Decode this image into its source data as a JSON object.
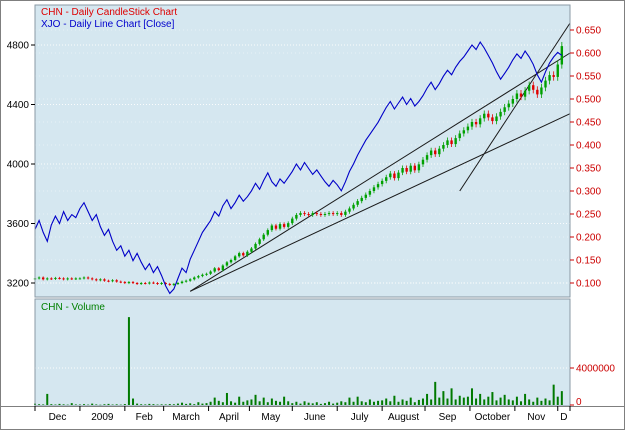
{
  "legends": {
    "chn": "CHN - Daily CandleStick Chart",
    "xjo": "XJO - Daily Line Chart [Close]",
    "volume": "CHN - Volume"
  },
  "axes": {
    "left_ticks": [
      "4800",
      "4400",
      "4000",
      "3600",
      "3200"
    ],
    "right_ticks": [
      "0.650",
      "0.600",
      "0.550",
      "0.500",
      "0.450",
      "0.400",
      "0.350",
      "0.300",
      "0.250",
      "0.200",
      "0.150",
      "0.100"
    ],
    "months": [
      "Dec",
      "2009",
      "Feb",
      "March",
      "April",
      "May",
      "June",
      "July",
      "August",
      "Sep",
      "October",
      "Nov",
      "D"
    ],
    "volume_ticks": [
      "4000000",
      "0"
    ]
  },
  "colors": {
    "panel_background": "#d5e7f0",
    "outer_background": "#ffffff",
    "grid": "#ffffff",
    "candle_up": "#00a000",
    "candle_down": "#e00000",
    "xjo_line": "#0000c8",
    "volume_bar": "#007a00",
    "trendline": "#1a1a1a",
    "left_axis_text": "#000000",
    "right_axis_text": "#cc0000",
    "month_text": "#000000",
    "legend_chn": "#dd0000",
    "legend_xjo": "#0000cc",
    "legend_volume": "#008000",
    "border": "#8a9aa5"
  },
  "chart_data": {
    "type": "mixed",
    "sample_step_days": 2,
    "total_days": 262,
    "month_labels": [
      "Dec",
      "2009",
      "Feb",
      "March",
      "April",
      "May",
      "June",
      "July",
      "August",
      "Sep",
      "October",
      "Nov",
      "D"
    ],
    "month_start_days": [
      0,
      22,
      44,
      63,
      85,
      105,
      126,
      148,
      170,
      191,
      213,
      235,
      256
    ],
    "left_axis": {
      "ticks": [
        4800,
        4400,
        4000,
        3600,
        3200
      ],
      "range": [
        3113,
        5049
      ]
    },
    "right_axis": {
      "ticks": [
        0.65,
        0.6,
        0.55,
        0.5,
        0.45,
        0.4,
        0.35,
        0.3,
        0.25,
        0.2,
        0.15,
        0.1
      ],
      "range": [
        0.072,
        0.698
      ]
    },
    "volume_axis": {
      "ticks": [
        4000000,
        0
      ],
      "range": [
        0,
        11000000
      ]
    },
    "series": [
      {
        "name": "XJO - Daily Line Chart [Close]",
        "type": "line",
        "axis": "left",
        "values": [
          3560,
          3620,
          3540,
          3480,
          3590,
          3650,
          3600,
          3680,
          3620,
          3660,
          3640,
          3700,
          3740,
          3680,
          3620,
          3660,
          3580,
          3520,
          3560,
          3480,
          3420,
          3450,
          3380,
          3420,
          3350,
          3400,
          3340,
          3290,
          3330,
          3270,
          3310,
          3250,
          3180,
          3130,
          3160,
          3230,
          3300,
          3270,
          3360,
          3420,
          3480,
          3540,
          3580,
          3620,
          3680,
          3650,
          3720,
          3760,
          3700,
          3740,
          3790,
          3750,
          3780,
          3820,
          3870,
          3830,
          3890,
          3940,
          3880,
          3850,
          3900,
          3870,
          3910,
          3950,
          4000,
          3960,
          4010,
          3970,
          3930,
          3960,
          3920,
          3880,
          3850,
          3890,
          3860,
          3820,
          3880,
          3950,
          4000,
          4060,
          4110,
          4160,
          4200,
          4240,
          4280,
          4330,
          4380,
          4420,
          4370,
          4410,
          4450,
          4400,
          4440,
          4390,
          4420,
          4460,
          4510,
          4550,
          4500,
          4540,
          4590,
          4630,
          4600,
          4650,
          4690,
          4720,
          4760,
          4800,
          4770,
          4820,
          4780,
          4730,
          4680,
          4620,
          4570,
          4610,
          4650,
          4700,
          4740,
          4710,
          4760,
          4720,
          4670,
          4600,
          4550,
          4620,
          4680,
          4720,
          4750,
          4730
        ]
      },
      {
        "name": "CHN - Daily CandleStick Chart",
        "type": "candlestick",
        "axis": "right",
        "close": [
          0.11,
          0.112,
          0.108,
          0.11,
          0.109,
          0.111,
          0.11,
          0.108,
          0.11,
          0.109,
          0.11,
          0.11,
          0.112,
          0.11,
          0.108,
          0.106,
          0.108,
          0.105,
          0.104,
          0.106,
          0.103,
          0.102,
          0.1,
          0.102,
          0.1,
          0.098,
          0.1,
          0.099,
          0.101,
          0.1,
          0.098,
          0.1,
          0.098,
          0.096,
          0.098,
          0.1,
          0.103,
          0.105,
          0.108,
          0.112,
          0.115,
          0.118,
          0.12,
          0.125,
          0.132,
          0.128,
          0.138,
          0.145,
          0.15,
          0.158,
          0.165,
          0.16,
          0.168,
          0.175,
          0.185,
          0.195,
          0.205,
          0.215,
          0.225,
          0.218,
          0.228,
          0.222,
          0.23,
          0.24,
          0.248,
          0.252,
          0.25,
          0.248,
          0.252,
          0.25,
          0.248,
          0.25,
          0.252,
          0.25,
          0.252,
          0.248,
          0.255,
          0.262,
          0.27,
          0.278,
          0.285,
          0.292,
          0.3,
          0.308,
          0.315,
          0.322,
          0.33,
          0.338,
          0.328,
          0.34,
          0.35,
          0.342,
          0.355,
          0.345,
          0.358,
          0.368,
          0.378,
          0.388,
          0.38,
          0.392,
          0.4,
          0.41,
          0.402,
          0.415,
          0.425,
          0.432,
          0.44,
          0.45,
          0.445,
          0.458,
          0.468,
          0.46,
          0.452,
          0.462,
          0.472,
          0.482,
          0.49,
          0.5,
          0.512,
          0.505,
          0.518,
          0.53,
          0.52,
          0.51,
          0.525,
          0.54,
          0.552,
          0.548,
          0.575,
          0.615
        ]
      },
      {
        "name": "CHN - Volume",
        "type": "bar",
        "panel": "volume",
        "values": [
          150000,
          80000,
          60000,
          1200000,
          90000,
          50000,
          120000,
          70000,
          40000,
          200000,
          60000,
          50000,
          90000,
          40000,
          150000,
          60000,
          30000,
          80000,
          120000,
          50000,
          70000,
          40000,
          100000,
          9500000,
          700000,
          150000,
          80000,
          60000,
          120000,
          90000,
          50000,
          70000,
          60000,
          100000,
          80000,
          150000,
          250000,
          120000,
          180000,
          90000,
          300000,
          150000,
          200000,
          350000,
          800000,
          450000,
          300000,
          1300000,
          400000,
          250000,
          900000,
          350000,
          500000,
          600000,
          1100000,
          400000,
          800000,
          300000,
          700000,
          450000,
          350000,
          900000,
          400000,
          200000,
          350000,
          150000,
          400000,
          250000,
          180000,
          300000,
          120000,
          200000,
          350000,
          150000,
          250000,
          400000,
          300000,
          800000,
          350000,
          900000,
          400000,
          300000,
          600000,
          350000,
          450000,
          500000,
          700000,
          400000,
          1000000,
          350000,
          600000,
          450000,
          800000,
          300000,
          550000,
          700000,
          1200000,
          600000,
          2500000,
          800000,
          1500000,
          700000,
          1800000,
          600000,
          1000000,
          800000,
          900000,
          1800000,
          700000,
          1200000,
          600000,
          900000,
          1400000,
          500000,
          800000,
          1100000,
          600000,
          500000,
          900000,
          400000,
          1200000,
          600000,
          350000,
          800000,
          450000,
          700000,
          500000,
          2200000,
          900000,
          1500000
        ]
      }
    ],
    "trendlines": [
      {
        "from_day": 76,
        "from_price": 0.082,
        "to_day": 262,
        "to_price": 0.6
      },
      {
        "from_day": 76,
        "from_price": 0.082,
        "to_day": 262,
        "to_price": 0.468
      },
      {
        "from_day": 208,
        "from_price": 0.3,
        "to_day": 262,
        "to_price": 0.665
      }
    ]
  }
}
